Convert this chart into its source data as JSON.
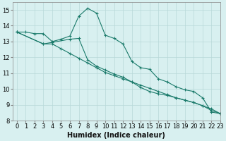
{
  "title": "",
  "xlabel": "Humidex (Indice chaleur)",
  "bg_color": "#d8f0f0",
  "line_color": "#1a7a6a",
  "grid_color": "#b8d8d8",
  "xlim": [
    -0.5,
    23
  ],
  "ylim": [
    8,
    15.5
  ],
  "yticks": [
    8,
    9,
    10,
    11,
    12,
    13,
    14,
    15
  ],
  "xticks": [
    0,
    1,
    2,
    3,
    4,
    5,
    6,
    7,
    8,
    9,
    10,
    11,
    12,
    13,
    14,
    15,
    16,
    17,
    18,
    19,
    20,
    21,
    22,
    23
  ],
  "series1_x": [
    0,
    1,
    2,
    3,
    4,
    5,
    6,
    7,
    8,
    9,
    10,
    11,
    12,
    13,
    14,
    15,
    16,
    17,
    18,
    19,
    20,
    21,
    22,
    23
  ],
  "series1_y": [
    13.6,
    13.6,
    13.5,
    13.5,
    13.0,
    13.15,
    13.35,
    14.6,
    15.1,
    14.8,
    13.4,
    13.2,
    12.85,
    11.75,
    11.35,
    11.25,
    10.65,
    10.45,
    10.15,
    9.95,
    9.85,
    9.45,
    8.55,
    8.45
  ],
  "series2_x": [
    0,
    3,
    4,
    6,
    7,
    8,
    9,
    10,
    11,
    12,
    13,
    14,
    15,
    16,
    17,
    18,
    19,
    20,
    21,
    22,
    23
  ],
  "series2_y": [
    13.6,
    12.85,
    12.95,
    13.15,
    13.2,
    11.85,
    11.45,
    11.2,
    10.95,
    10.75,
    10.45,
    10.1,
    9.85,
    9.7,
    9.6,
    9.45,
    9.3,
    9.15,
    8.95,
    8.75,
    8.45
  ],
  "series3_x": [
    0,
    3,
    4,
    5,
    6,
    7,
    8,
    9,
    10,
    11,
    12,
    13,
    14,
    15,
    16,
    17,
    18,
    19,
    20,
    21,
    22,
    23
  ],
  "series3_y": [
    13.6,
    12.85,
    12.85,
    12.55,
    12.25,
    11.95,
    11.65,
    11.35,
    11.05,
    10.85,
    10.65,
    10.45,
    10.25,
    10.05,
    9.85,
    9.65,
    9.45,
    9.3,
    9.15,
    8.95,
    8.65,
    8.45
  ],
  "tick_fontsize": 6,
  "xlabel_fontsize": 7
}
